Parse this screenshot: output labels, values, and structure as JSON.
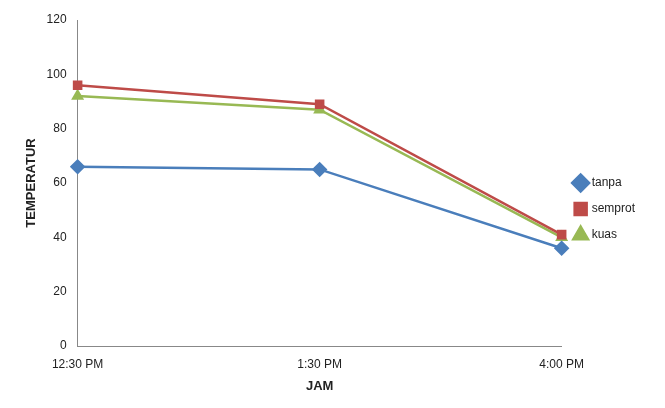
{
  "chart_data": {
    "type": "line",
    "x_label": "JAM",
    "y_label": "TEMPERATUR",
    "categories": [
      "12:30 PM",
      "1:30 PM",
      "4:00 PM"
    ],
    "series": [
      {
        "name": "tanpa",
        "color": "#4a7ebb",
        "marker": "diamond",
        "values": [
          66,
          65,
          36
        ]
      },
      {
        "name": "semprot",
        "color": "#be4b48",
        "marker": "square",
        "values": [
          96,
          89,
          41
        ]
      },
      {
        "name": "kuas",
        "color": "#98b954",
        "marker": "triangle",
        "values": [
          92,
          87,
          40
        ]
      }
    ],
    "ylim": [
      0,
      120
    ],
    "yticks": [
      0,
      20,
      40,
      60,
      80,
      100,
      120
    ],
    "grid": false,
    "legend": "right"
  }
}
